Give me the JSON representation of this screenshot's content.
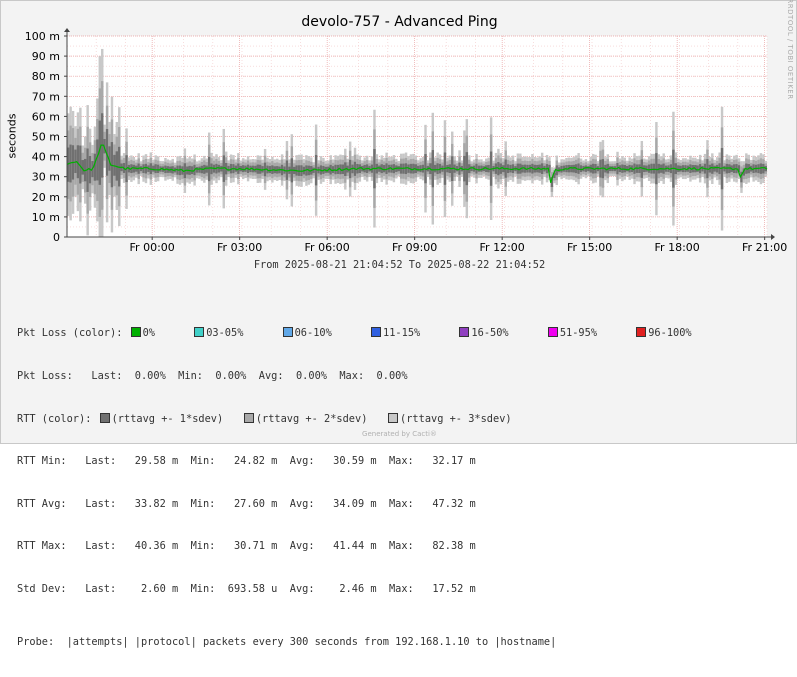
{
  "chart_data": {
    "type": "area",
    "title": "devolo-757 - Advanced Ping",
    "ylabel": "seconds",
    "ylim": [
      0,
      0.1
    ],
    "y_ticks": [
      "0",
      "10 m",
      "20 m",
      "30 m",
      "40 m",
      "50 m",
      "60 m",
      "70 m",
      "80 m",
      "90 m",
      "100 m"
    ],
    "x_ticks": [
      "Fr 00:00",
      "Fr 03:00",
      "Fr 06:00",
      "Fr 09:00",
      "Fr 12:00",
      "Fr 15:00",
      "Fr 18:00",
      "Fr 21:00"
    ],
    "x_range_hours": [
      0,
      24
    ],
    "x_tick_hours": [
      2.92,
      5.92,
      8.92,
      11.92,
      14.92,
      17.92,
      20.92,
      23.92
    ],
    "grid": true,
    "series": [
      {
        "name": "rttavg +- 3*sdev",
        "color": "#c8c8c8"
      },
      {
        "name": "rttavg +- 2*sdev",
        "color": "#a8a8a8"
      },
      {
        "name": "rttavg +- 1*sdev",
        "color": "#707070"
      },
      {
        "name": "Pkt Loss 0%",
        "color": "#00b000",
        "x": [
          0,
          0.3,
          0.6,
          0.9,
          1.2,
          1.5,
          2,
          3,
          4,
          5,
          6,
          8,
          10,
          12,
          14,
          15,
          16,
          16.5,
          16.6,
          16.7,
          17,
          18,
          20,
          22,
          23,
          23.1,
          23.2,
          23.4,
          24
        ],
        "y": [
          0.036,
          0.038,
          0.033,
          0.034,
          0.047,
          0.036,
          0.034,
          0.034,
          0.033,
          0.034,
          0.034,
          0.033,
          0.034,
          0.034,
          0.034,
          0.034,
          0.034,
          0.034,
          0.026,
          0.033,
          0.034,
          0.034,
          0.034,
          0.034,
          0.034,
          0.029,
          0.034,
          0.034,
          0.034
        ]
      }
    ]
  },
  "range_text": "From 2025-08-21 21:04:52 To 2025-08-22 21:04:52",
  "watermark": "RRDTOOL / TOBI OETIKER",
  "footer": "Generated by Cacti®",
  "legend": {
    "pkt_color_label": "Pkt Loss (color):",
    "pkt_colors": [
      {
        "label": "0%",
        "color": "#00b000"
      },
      {
        "label": "03-05%",
        "color": "#40d0c8"
      },
      {
        "label": "06-10%",
        "color": "#60a8e8"
      },
      {
        "label": "11-15%",
        "color": "#3060e0"
      },
      {
        "label": "16-50%",
        "color": "#9040c0"
      },
      {
        "label": "51-95%",
        "color": "#f000f0"
      },
      {
        "label": "96-100%",
        "color": "#e02020"
      }
    ],
    "pkt_loss_line": "Pkt Loss:   Last:  0.00%  Min:  0.00%  Avg:  0.00%  Max:  0.00%",
    "rtt_color_label": "RTT (color):",
    "rtt_colors": [
      {
        "label": "(rttavg +- 1*sdev)",
        "color": "#707070"
      },
      {
        "label": "(rttavg +- 2*sdev)",
        "color": "#a8a8a8"
      },
      {
        "label": "(rttavg +- 3*sdev)",
        "color": "#c8c8c8"
      }
    ],
    "rtt_min": "RTT Min:   Last:   29.58 m  Min:   24.82 m  Avg:   30.59 m  Max:   32.17 m",
    "rtt_avg": "RTT Avg:   Last:   33.82 m  Min:   27.60 m  Avg:   34.09 m  Max:   47.32 m",
    "rtt_max": "RTT Max:   Last:   40.36 m  Min:   30.71 m  Avg:   41.44 m  Max:   82.38 m",
    "std_dev": "Std Dev:   Last:    2.60 m  Min:  693.58 u  Avg:    2.46 m  Max:   17.52 m",
    "probe": "Probe:  |attempts| |protocol| packets every 300 seconds from 192.168.1.10 to |hostname|"
  }
}
